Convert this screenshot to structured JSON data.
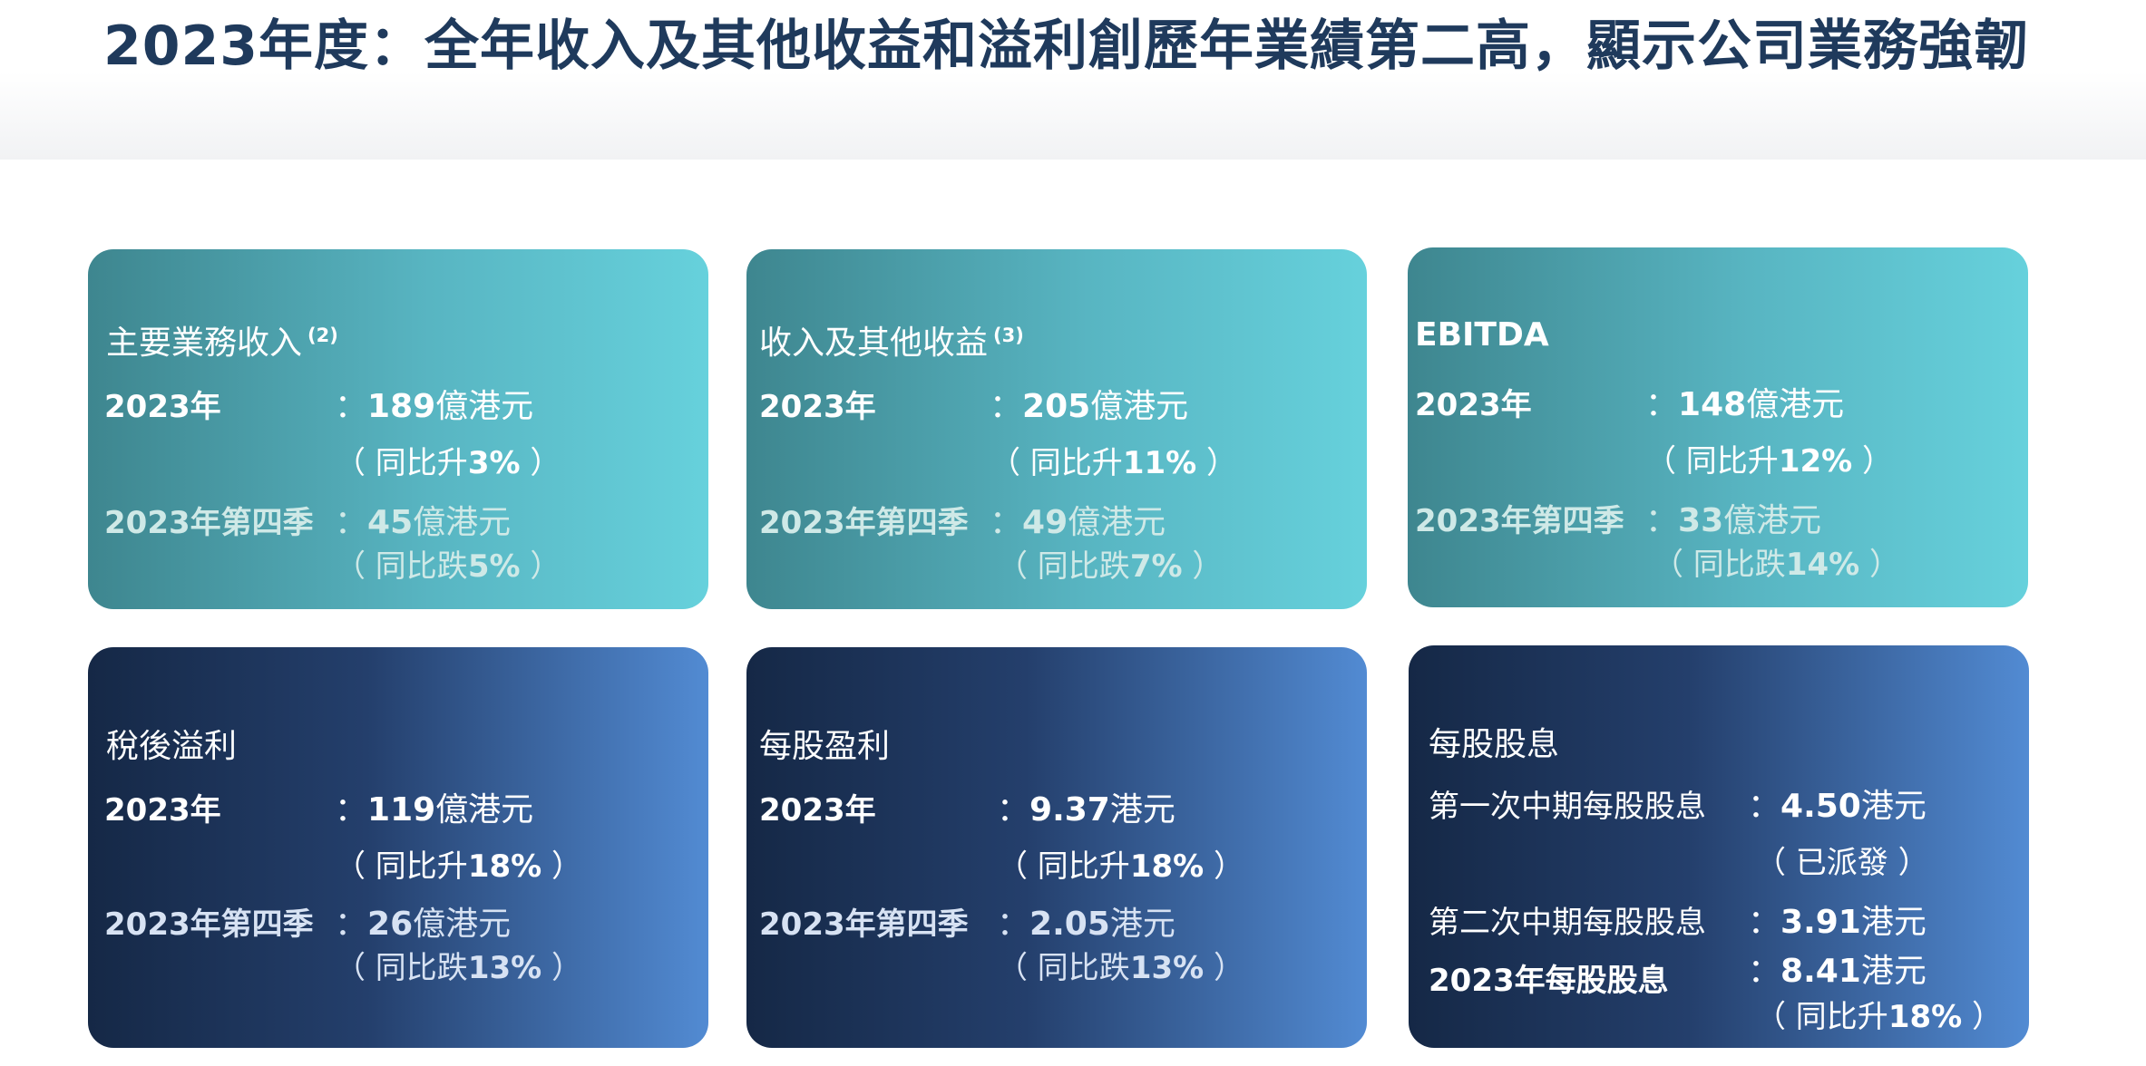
{
  "title": "2023年度：全年收入及其他收益和溢利創歷年業績第二高，顯示公司業務強韌",
  "colors": {
    "title": "#1f3a5c",
    "teal_start": "#3e868f",
    "teal_end": "#66d1dc",
    "navy_start": "#152846",
    "navy_end": "#528bd3"
  },
  "cards": {
    "c1": {
      "title": "主要業務收入",
      "sup": "(2)",
      "y_label": "2023年",
      "y_num": "189",
      "y_unit": "億港元",
      "y_change_open": "（ 同比升",
      "y_change_num": "3%",
      "y_change_close": " ）",
      "q_label": "2023年第四季",
      "q_num": "45",
      "q_unit": "億港元",
      "q_change_open": "（ 同比跌",
      "q_change_num": "5%",
      "q_change_close": " ）"
    },
    "c2": {
      "title": "收入及其他收益",
      "sup": "(3)",
      "y_label": "2023年",
      "y_num": "205",
      "y_unit": "億港元",
      "y_change_open": "（ 同比升",
      "y_change_num": "11%",
      "y_change_close": " ）",
      "q_label": "2023年第四季",
      "q_num": "49",
      "q_unit": "億港元",
      "q_change_open": "（ 同比跌",
      "q_change_num": "7%",
      "q_change_close": " ）"
    },
    "c3": {
      "title": "EBITDA",
      "y_label": "2023年",
      "y_num": "148",
      "y_unit": "億港元",
      "y_change_open": "（ 同比升",
      "y_change_num": "12%",
      "y_change_close": " ）",
      "q_label": "2023年第四季",
      "q_num": "33",
      "q_unit": "億港元",
      "q_change_open": "（ 同比跌",
      "q_change_num": "14%",
      "q_change_close": " ）"
    },
    "c4": {
      "title": "稅後溢利",
      "y_label": "2023年",
      "y_num": "119",
      "y_unit": "億港元",
      "y_change_open": "（ 同比升",
      "y_change_num": "18%",
      "y_change_close": " ）",
      "q_label": "2023年第四季",
      "q_num": "26",
      "q_unit": "億港元",
      "q_change_open": "（ 同比跌",
      "q_change_num": "13%",
      "q_change_close": " ）"
    },
    "c5": {
      "title": "每股盈利",
      "y_label": "2023年",
      "y_num": "9.37",
      "y_unit": "港元",
      "y_change_open": "（ 同比升",
      "y_change_num": "18%",
      "y_change_close": " ）",
      "q_label": "2023年第四季",
      "q_num": "2.05",
      "q_unit": "港元",
      "q_change_open": "（ 同比跌",
      "q_change_num": "13%",
      "q_change_close": "  ）"
    },
    "c6": {
      "title": "每股股息",
      "r1_label": "第一次中期每股股息",
      "r1_num": "4.50",
      "r1_unit": "港元",
      "r1_note": "（ 已派發 ）",
      "r2_label": "第二次中期每股股息",
      "r2_num": "3.91",
      "r2_unit": "港元",
      "r3_label": "2023年每股股息",
      "r3_num": "8.41",
      "r3_unit": "港元",
      "r3_change_open": "（ 同比升",
      "r3_change_num": "18%",
      "r3_change_close": "  ）"
    }
  }
}
